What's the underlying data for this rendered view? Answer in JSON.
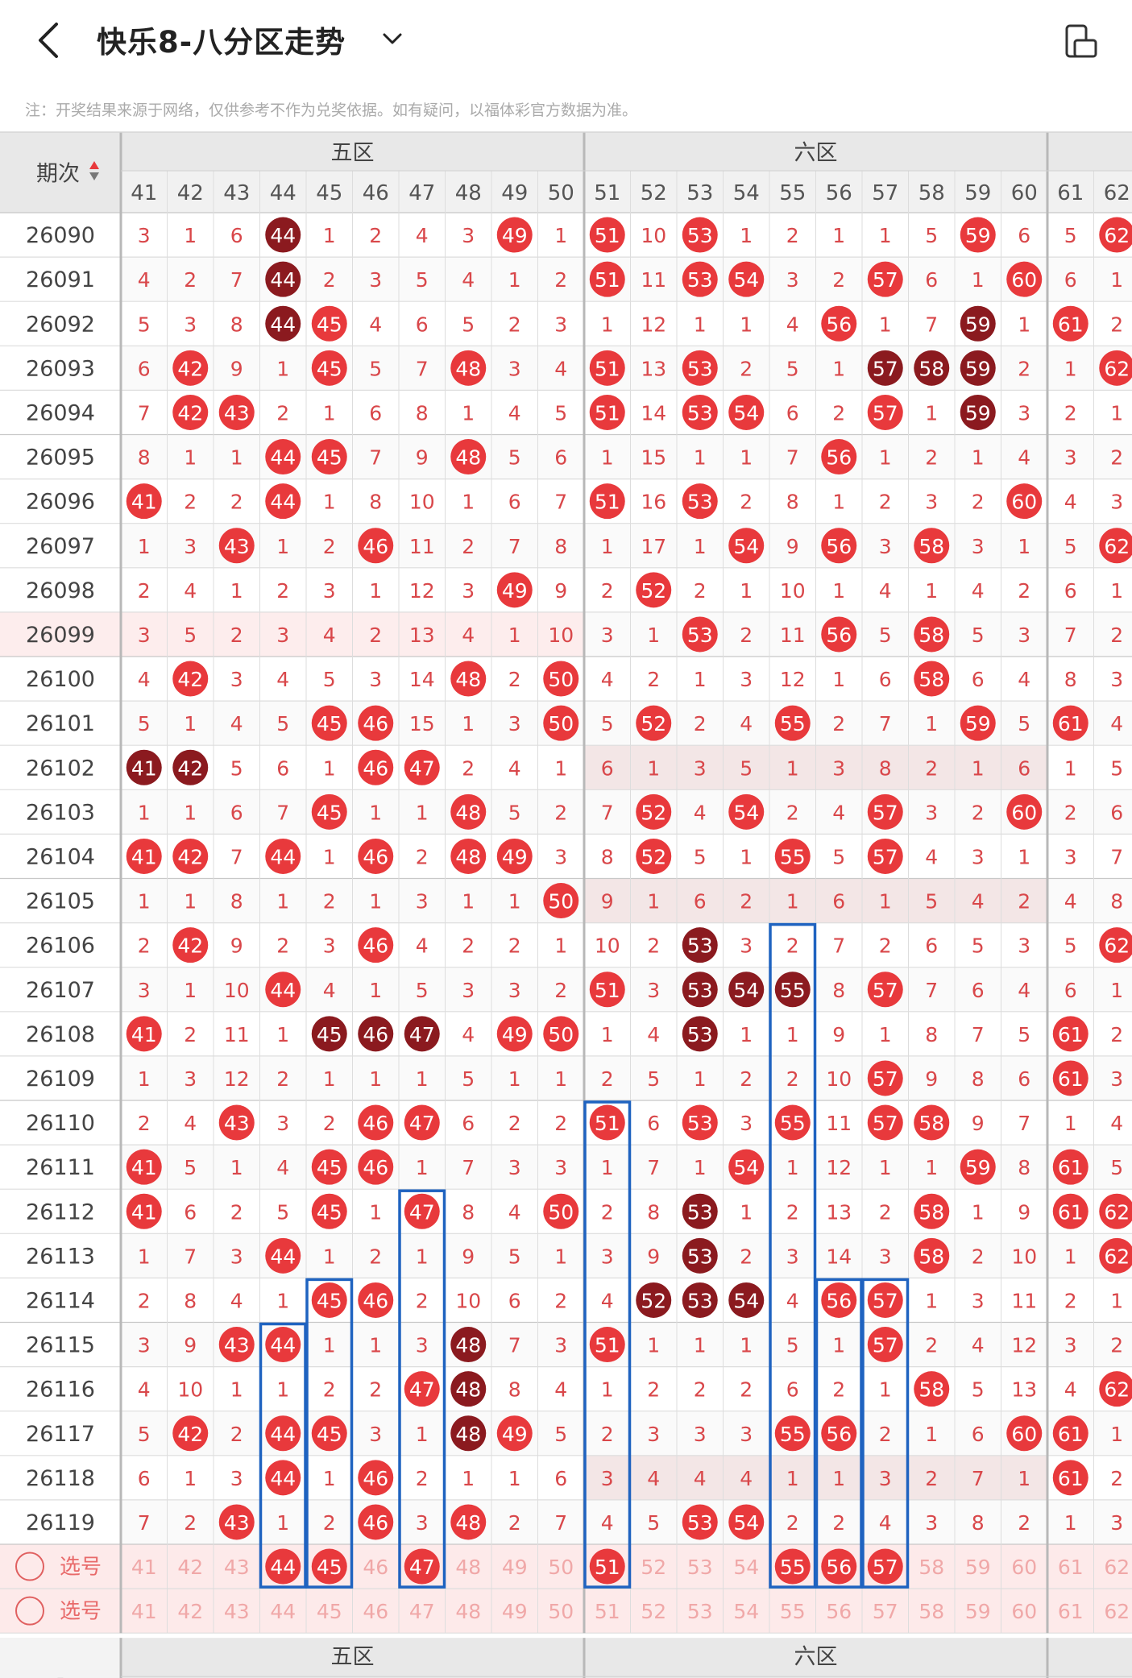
{
  "header": {
    "title": "快乐8-八分区走势",
    "back_icon": "back-arrow-icon",
    "dropdown_icon": "chevron-down-icon",
    "device_icon": "device-rotate-icon"
  },
  "note": "注：开奖结果来源于网络，仅供参考不作为兑奖依据。如有疑问，以福体彩官方数据为准。",
  "table": {
    "period_header": "期次",
    "sort_icon": "sort-updown-icon",
    "zones": [
      {
        "name": "五区",
        "columns": [
          41,
          42,
          43,
          44,
          45,
          46,
          47,
          48,
          49,
          50
        ]
      },
      {
        "name": "六区",
        "columns": [
          51,
          52,
          53,
          54,
          55,
          56,
          57,
          58,
          59,
          60
        ]
      },
      {
        "name": "",
        "columns": [
          61,
          62
        ]
      }
    ],
    "rows": [
      {
        "period": "26090",
        "cells": [
          "3",
          "1",
          "6",
          "44",
          "1",
          "2",
          "4",
          "3",
          "49",
          "1",
          "51",
          "10",
          "53",
          "1",
          "2",
          "1",
          "1",
          "5",
          "59",
          "6",
          "5",
          "62"
        ]
      },
      {
        "period": "26091",
        "cells": [
          "4",
          "2",
          "7",
          "44",
          "2",
          "3",
          "5",
          "4",
          "1",
          "2",
          "51",
          "11",
          "53",
          "54",
          "3",
          "2",
          "57",
          "6",
          "1",
          "60",
          "6",
          "1"
        ]
      },
      {
        "period": "26092",
        "cells": [
          "5",
          "3",
          "8",
          "44",
          "45",
          "4",
          "6",
          "5",
          "2",
          "3",
          "1",
          "12",
          "1",
          "1",
          "4",
          "56",
          "1",
          "7",
          "59",
          "1",
          "61",
          "2"
        ]
      },
      {
        "period": "26093",
        "cells": [
          "6",
          "42",
          "9",
          "1",
          "45",
          "5",
          "7",
          "48",
          "3",
          "4",
          "51",
          "13",
          "53",
          "2",
          "5",
          "1",
          "57",
          "58",
          "59",
          "2",
          "1",
          "62"
        ]
      },
      {
        "period": "26094",
        "cells": [
          "7",
          "42",
          "43",
          "2",
          "1",
          "6",
          "8",
          "1",
          "4",
          "5",
          "51",
          "14",
          "53",
          "54",
          "6",
          "2",
          "57",
          "1",
          "59",
          "3",
          "2",
          "1"
        ]
      },
      {
        "period": "26095",
        "cells": [
          "8",
          "1",
          "1",
          "44",
          "45",
          "7",
          "9",
          "48",
          "5",
          "6",
          "1",
          "15",
          "1",
          "1",
          "7",
          "56",
          "1",
          "2",
          "1",
          "4",
          "3",
          "2"
        ]
      },
      {
        "period": "26096",
        "cells": [
          "41",
          "2",
          "2",
          "44",
          "1",
          "8",
          "10",
          "1",
          "6",
          "7",
          "51",
          "16",
          "53",
          "2",
          "8",
          "1",
          "2",
          "3",
          "2",
          "60",
          "4",
          "3"
        ]
      },
      {
        "period": "26097",
        "cells": [
          "1",
          "3",
          "43",
          "1",
          "2",
          "46",
          "11",
          "2",
          "7",
          "8",
          "1",
          "17",
          "1",
          "54",
          "9",
          "56",
          "3",
          "58",
          "3",
          "1",
          "5",
          "62"
        ]
      },
      {
        "period": "26098",
        "cells": [
          "2",
          "4",
          "1",
          "2",
          "3",
          "1",
          "12",
          "3",
          "49",
          "9",
          "2",
          "52",
          "2",
          "1",
          "10",
          "1",
          "4",
          "1",
          "4",
          "2",
          "6",
          "1"
        ]
      },
      {
        "period": "26099",
        "cells": [
          "3",
          "5",
          "2",
          "3",
          "4",
          "2",
          "13",
          "4",
          "1",
          "10",
          "3",
          "1",
          "53",
          "2",
          "11",
          "56",
          "5",
          "58",
          "5",
          "3",
          "7",
          "2"
        ]
      },
      {
        "period": "26100",
        "cells": [
          "4",
          "42",
          "3",
          "4",
          "5",
          "3",
          "14",
          "48",
          "2",
          "50",
          "4",
          "2",
          "1",
          "3",
          "12",
          "1",
          "6",
          "58",
          "6",
          "4",
          "8",
          "3"
        ]
      },
      {
        "period": "26101",
        "cells": [
          "5",
          "1",
          "4",
          "5",
          "45",
          "46",
          "15",
          "1",
          "3",
          "50",
          "5",
          "52",
          "2",
          "4",
          "55",
          "2",
          "7",
          "1",
          "59",
          "5",
          "61",
          "4"
        ]
      },
      {
        "period": "26102",
        "cells": [
          "41",
          "42",
          "5",
          "6",
          "1",
          "46",
          "47",
          "2",
          "4",
          "1",
          "6",
          "1",
          "3",
          "5",
          "1",
          "3",
          "8",
          "2",
          "1",
          "6",
          "1",
          "5"
        ]
      },
      {
        "period": "26103",
        "cells": [
          "1",
          "1",
          "6",
          "7",
          "45",
          "1",
          "1",
          "48",
          "5",
          "2",
          "7",
          "52",
          "4",
          "54",
          "2",
          "4",
          "57",
          "3",
          "2",
          "60",
          "2",
          "6"
        ]
      },
      {
        "period": "26104",
        "cells": [
          "41",
          "42",
          "7",
          "44",
          "1",
          "46",
          "2",
          "48",
          "49",
          "3",
          "8",
          "52",
          "5",
          "1",
          "55",
          "5",
          "57",
          "4",
          "3",
          "1",
          "3",
          "7"
        ]
      },
      {
        "period": "26105",
        "cells": [
          "1",
          "1",
          "8",
          "1",
          "2",
          "1",
          "3",
          "1",
          "1",
          "50",
          "9",
          "1",
          "6",
          "2",
          "1",
          "6",
          "1",
          "5",
          "4",
          "2",
          "4",
          "8"
        ]
      },
      {
        "period": "26106",
        "cells": [
          "2",
          "42",
          "9",
          "2",
          "3",
          "46",
          "4",
          "2",
          "2",
          "1",
          "10",
          "2",
          "53",
          "3",
          "2",
          "7",
          "2",
          "6",
          "5",
          "3",
          "5",
          "62"
        ]
      },
      {
        "period": "26107",
        "cells": [
          "3",
          "1",
          "10",
          "44",
          "4",
          "1",
          "5",
          "3",
          "3",
          "2",
          "51",
          "3",
          "53",
          "54",
          "55",
          "8",
          "57",
          "7",
          "6",
          "4",
          "6",
          "1"
        ]
      },
      {
        "period": "26108",
        "cells": [
          "41",
          "2",
          "11",
          "1",
          "45",
          "46",
          "47",
          "4",
          "49",
          "50",
          "1",
          "4",
          "53",
          "1",
          "1",
          "9",
          "1",
          "8",
          "7",
          "5",
          "61",
          "2"
        ]
      },
      {
        "period": "26109",
        "cells": [
          "1",
          "3",
          "12",
          "2",
          "1",
          "1",
          "1",
          "5",
          "1",
          "1",
          "2",
          "5",
          "1",
          "2",
          "2",
          "10",
          "57",
          "9",
          "8",
          "6",
          "61",
          "3"
        ]
      },
      {
        "period": "26110",
        "cells": [
          "2",
          "4",
          "43",
          "3",
          "2",
          "46",
          "47",
          "6",
          "2",
          "2",
          "51",
          "6",
          "53",
          "3",
          "55",
          "11",
          "57",
          "58",
          "9",
          "7",
          "1",
          "4"
        ]
      },
      {
        "period": "26111",
        "cells": [
          "41",
          "5",
          "1",
          "4",
          "45",
          "46",
          "1",
          "7",
          "3",
          "3",
          "1",
          "7",
          "1",
          "54",
          "1",
          "12",
          "1",
          "1",
          "59",
          "8",
          "61",
          "5"
        ]
      },
      {
        "period": "26112",
        "cells": [
          "41",
          "6",
          "2",
          "5",
          "45",
          "1",
          "47",
          "8",
          "4",
          "50",
          "2",
          "8",
          "53",
          "1",
          "2",
          "13",
          "2",
          "58",
          "1",
          "9",
          "61",
          "62"
        ]
      },
      {
        "period": "26113",
        "cells": [
          "1",
          "7",
          "3",
          "44",
          "1",
          "2",
          "1",
          "9",
          "5",
          "1",
          "3",
          "9",
          "53",
          "2",
          "3",
          "14",
          "3",
          "58",
          "2",
          "10",
          "1",
          "62"
        ]
      },
      {
        "period": "26114",
        "cells": [
          "2",
          "8",
          "4",
          "1",
          "45",
          "46",
          "2",
          "10",
          "6",
          "2",
          "4",
          "52",
          "53",
          "54",
          "4",
          "56",
          "57",
          "1",
          "3",
          "11",
          "2",
          "1"
        ]
      },
      {
        "period": "26115",
        "cells": [
          "3",
          "9",
          "43",
          "44",
          "1",
          "1",
          "3",
          "48",
          "7",
          "3",
          "51",
          "1",
          "1",
          "1",
          "5",
          "1",
          "57",
          "2",
          "4",
          "12",
          "3",
          "2"
        ]
      },
      {
        "period": "26116",
        "cells": [
          "4",
          "10",
          "1",
          "1",
          "2",
          "2",
          "47",
          "48",
          "8",
          "4",
          "1",
          "2",
          "2",
          "2",
          "6",
          "2",
          "1",
          "58",
          "5",
          "13",
          "4",
          "62"
        ]
      },
      {
        "period": "26117",
        "cells": [
          "5",
          "42",
          "2",
          "44",
          "45",
          "3",
          "1",
          "48",
          "49",
          "5",
          "2",
          "3",
          "3",
          "3",
          "55",
          "56",
          "2",
          "1",
          "6",
          "60",
          "61",
          "1"
        ]
      },
      {
        "period": "26118",
        "cells": [
          "6",
          "1",
          "3",
          "44",
          "1",
          "46",
          "2",
          "1",
          "1",
          "6",
          "3",
          "4",
          "4",
          "4",
          "1",
          "1",
          "3",
          "2",
          "7",
          "1",
          "61",
          "2"
        ]
      },
      {
        "period": "26119",
        "cells": [
          "7",
          "2",
          "43",
          "1",
          "2",
          "46",
          "3",
          "48",
          "2",
          "7",
          "4",
          "5",
          "53",
          "54",
          "2",
          "2",
          "4",
          "3",
          "8",
          "2",
          "1",
          "3"
        ]
      }
    ],
    "dark_balls": [
      [
        0,
        3
      ],
      [
        1,
        3
      ],
      [
        2,
        3
      ],
      [
        2,
        18
      ],
      [
        3,
        16
      ],
      [
        3,
        17
      ],
      [
        3,
        18
      ],
      [
        4,
        18
      ],
      [
        12,
        0
      ],
      [
        12,
        1
      ],
      [
        16,
        12
      ],
      [
        17,
        12
      ],
      [
        17,
        13
      ],
      [
        17,
        14
      ],
      [
        18,
        4
      ],
      [
        18,
        5
      ],
      [
        18,
        6
      ],
      [
        18,
        12
      ],
      [
        23,
        12
      ],
      [
        24,
        11
      ],
      [
        24,
        12
      ],
      [
        24,
        13
      ],
      [
        25,
        7
      ],
      [
        26,
        7
      ],
      [
        27,
        7
      ],
      [
        22,
        12
      ]
    ],
    "select_rows": [
      {
        "label": "选号",
        "values": [
          "41",
          "42",
          "43",
          "44",
          "45",
          "46",
          "47",
          "48",
          "49",
          "50",
          "51",
          "52",
          "53",
          "54",
          "55",
          "56",
          "57",
          "58",
          "59",
          "60",
          "61",
          "62"
        ],
        "highlight": [
          3,
          4,
          6,
          10,
          14,
          15,
          16
        ]
      },
      {
        "label": "选号",
        "values": [
          "41",
          "42",
          "43",
          "44",
          "45",
          "46",
          "47",
          "48",
          "49",
          "50",
          "51",
          "52",
          "53",
          "54",
          "55",
          "56",
          "57",
          "58",
          "59",
          "60",
          "61",
          "62"
        ],
        "highlight": []
      }
    ],
    "footer_zones": [
      "五区",
      "六区"
    ],
    "footer_left": "-"
  },
  "colors": {
    "ball_red": "#e8393c",
    "ball_dark": "#8b1a1f",
    "miss_text": "#d9474a",
    "header_bg": "#e8e8e8",
    "grid_line": "#dddddd",
    "zone_line": "#b8b8b8",
    "blue_box": "#1f63c0"
  }
}
